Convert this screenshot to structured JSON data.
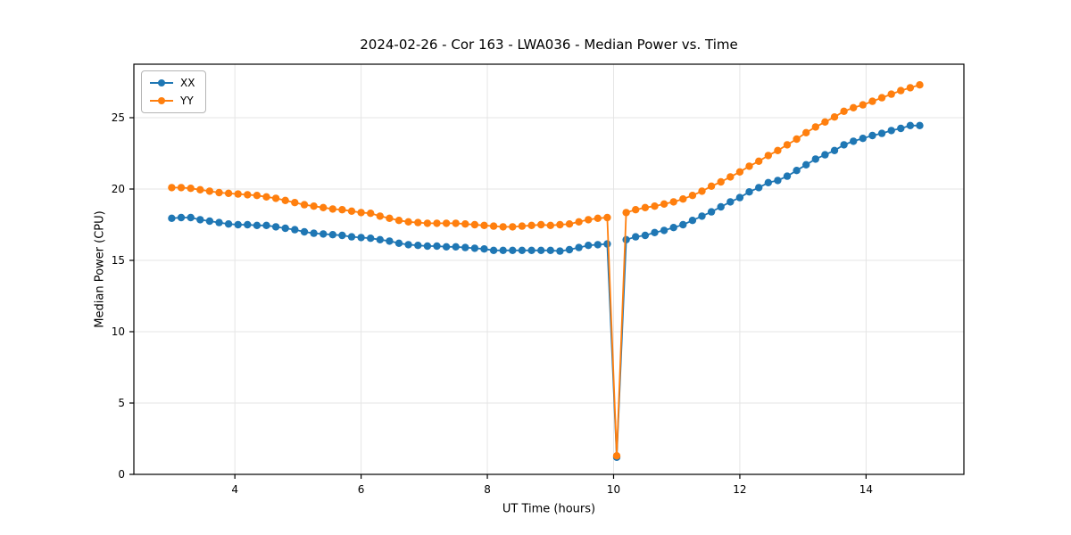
{
  "title": "2024-02-26 - Cor 163 - LWA036 - Median Power vs. Time",
  "chart_data": {
    "type": "line",
    "title": "2024-02-26 - Cor 163 - LWA036 - Median Power vs. Time",
    "xlabel": "UT Time (hours)",
    "ylabel": "Median Power (CPU)",
    "xlim": [
      2.4,
      15.55
    ],
    "ylim": [
      0,
      28.75
    ],
    "xticks": [
      4,
      6,
      8,
      10,
      12,
      14
    ],
    "yticks": [
      0,
      5,
      10,
      15,
      20,
      25
    ],
    "grid": true,
    "legend_position": "upper left",
    "x": [
      3,
      3.15,
      3.3,
      3.45,
      3.6,
      3.75,
      3.9,
      4.05,
      4.2,
      4.35,
      4.5,
      4.65,
      4.8,
      4.95,
      5.1,
      5.25,
      5.4,
      5.55,
      5.7,
      5.85,
      6,
      6.15,
      6.3,
      6.45,
      6.6,
      6.75,
      6.9,
      7.05,
      7.2,
      7.35,
      7.5,
      7.65,
      7.8,
      7.95,
      8.1,
      8.25,
      8.4,
      8.55,
      8.7,
      8.85,
      9,
      9.15,
      9.3,
      9.45,
      9.6,
      9.75,
      9.9,
      10.05,
      10.2,
      10.35,
      10.5,
      10.65,
      10.8,
      10.95,
      11.1,
      11.25,
      11.4,
      11.55,
      11.7,
      11.85,
      12,
      12.15,
      12.3,
      12.45,
      12.6,
      12.75,
      12.9,
      13.05,
      13.2,
      13.35,
      13.5,
      13.65,
      13.8,
      13.95,
      14.1,
      14.25,
      14.4,
      14.55,
      14.7,
      14.85
    ],
    "series": [
      {
        "name": "XX",
        "color": "#1f77b4",
        "values": [
          17.95,
          18.0,
          18.0,
          17.85,
          17.75,
          17.65,
          17.55,
          17.5,
          17.5,
          17.45,
          17.45,
          17.35,
          17.25,
          17.15,
          17.0,
          16.9,
          16.85,
          16.8,
          16.75,
          16.65,
          16.6,
          16.55,
          16.45,
          16.35,
          16.2,
          16.1,
          16.05,
          16.0,
          16.0,
          15.95,
          15.95,
          15.9,
          15.85,
          15.8,
          15.7,
          15.7,
          15.7,
          15.7,
          15.7,
          15.7,
          15.7,
          15.65,
          15.75,
          15.9,
          16.05,
          16.1,
          16.15,
          1.2,
          16.45,
          16.65,
          16.75,
          16.95,
          17.1,
          17.3,
          17.5,
          17.8,
          18.1,
          18.4,
          18.75,
          19.1,
          19.4,
          19.8,
          20.1,
          20.45,
          20.6,
          20.9,
          21.3,
          21.7,
          22.1,
          22.4,
          22.7,
          23.1,
          23.35,
          23.55,
          23.75,
          23.9,
          24.1,
          24.25,
          24.45,
          24.45
        ]
      },
      {
        "name": "YY",
        "color": "#ff7f0e",
        "values": [
          20.1,
          20.1,
          20.05,
          19.95,
          19.85,
          19.75,
          19.7,
          19.65,
          19.6,
          19.55,
          19.45,
          19.35,
          19.2,
          19.05,
          18.9,
          18.8,
          18.7,
          18.6,
          18.55,
          18.45,
          18.35,
          18.3,
          18.1,
          17.95,
          17.8,
          17.7,
          17.65,
          17.6,
          17.6,
          17.6,
          17.6,
          17.55,
          17.5,
          17.45,
          17.4,
          17.35,
          17.35,
          17.4,
          17.45,
          17.5,
          17.45,
          17.5,
          17.55,
          17.7,
          17.85,
          17.95,
          18.0,
          1.3,
          18.35,
          18.55,
          18.7,
          18.8,
          18.95,
          19.1,
          19.3,
          19.55,
          19.85,
          20.2,
          20.5,
          20.85,
          21.2,
          21.6,
          21.95,
          22.35,
          22.7,
          23.1,
          23.5,
          23.95,
          24.35,
          24.7,
          25.05,
          25.45,
          25.7,
          25.9,
          26.15,
          26.4,
          26.65,
          26.9,
          27.1,
          27.3
        ]
      }
    ]
  },
  "style": {
    "grid_color": "#e5e5e5",
    "frame_color": "#000000",
    "tick_color": "#000000"
  }
}
